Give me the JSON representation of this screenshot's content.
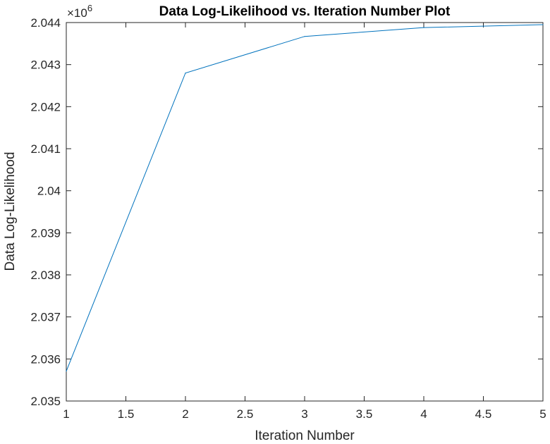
{
  "chart_data": {
    "type": "line",
    "title": "Data Log-Likelihood vs. Iteration Number Plot",
    "xlabel": "Iteration Number",
    "ylabel": "Data Log-Likelihood",
    "y_multiplier": "×10",
    "y_multiplier_exponent": "6",
    "xlim": [
      1,
      5
    ],
    "ylim": [
      2.035,
      2.044
    ],
    "xticks": [
      "1",
      "1.5",
      "2",
      "2.5",
      "3",
      "3.5",
      "4",
      "4.5",
      "5"
    ],
    "yticks": [
      "2.035",
      "2.036",
      "2.037",
      "2.038",
      "2.039",
      "2.04",
      "2.041",
      "2.042",
      "2.043",
      "2.044"
    ],
    "grid": false,
    "series": [
      {
        "color": "#0072BD",
        "x": [
          1,
          2,
          3,
          4,
          5
        ],
        "y": [
          2.03571,
          2.0428,
          2.04367,
          2.04388,
          2.04395
        ]
      }
    ]
  }
}
